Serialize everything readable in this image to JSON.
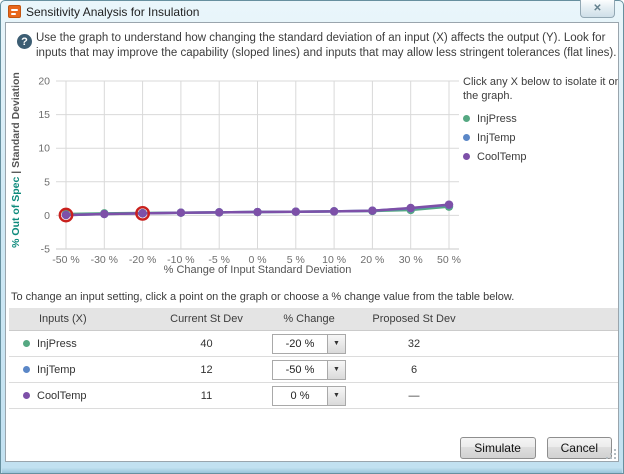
{
  "window": {
    "title": "Sensitivity Analysis for Insulation"
  },
  "icons": {
    "close": "✕",
    "help": "?",
    "dropdown_arrow": "▼"
  },
  "instruction": "Use the graph to understand how changing the standard deviation of an input (X) affects the output (Y).  Look for inputs that may improve the capability (sloped lines) and inputs that may allow less stringent tolerances (flat lines).",
  "legend": {
    "heading": "Click any X below to isolate it on the graph.",
    "items": [
      {
        "label": "InjPress",
        "color": "#55a882"
      },
      {
        "label": "InjTemp",
        "color": "#5b87c7"
      },
      {
        "label": "CoolTemp",
        "color": "#7d50a8"
      }
    ]
  },
  "chart_data": {
    "type": "line",
    "categories": [
      "-50 %",
      "-30 %",
      "-20 %",
      "-10 %",
      "-5 %",
      "0 %",
      "5 %",
      "10 %",
      "20 %",
      "30 %",
      "50 %"
    ],
    "series": [
      {
        "name": "InjPress",
        "color": "#55a882",
        "values": [
          0.2,
          0.3,
          0.35,
          0.4,
          0.45,
          0.5,
          0.55,
          0.6,
          0.65,
          0.8,
          1.3
        ]
      },
      {
        "name": "InjTemp",
        "color": "#5b87c7",
        "values": [
          0.05,
          0.2,
          0.3,
          0.4,
          0.45,
          0.5,
          0.55,
          0.6,
          0.7,
          1.05,
          1.55
        ]
      },
      {
        "name": "CoolTemp",
        "color": "#7d50a8",
        "values": [
          0.05,
          0.2,
          0.3,
          0.4,
          0.45,
          0.5,
          0.55,
          0.6,
          0.7,
          1.1,
          1.6
        ]
      }
    ],
    "highlighted_points": {
      "series": "CoolTemp",
      "category_indices": [
        0,
        2
      ],
      "ring_color": "#c9201d"
    },
    "yticks": [
      20,
      15,
      10,
      5,
      0,
      -5
    ],
    "ylim": [
      -5,
      20
    ],
    "grid": true,
    "xlabel": "% Change of Input Standard Deviation",
    "ylabel_left": "% Out of Spec",
    "ylabel_sep": "  |  ",
    "ylabel_right": "Standard Deviation",
    "legend_position": "right"
  },
  "table": {
    "note": "To change an input setting, click a point on the graph or choose a % change value from the table below.",
    "headers": [
      "Inputs (X)",
      "Current St Dev",
      "% Change",
      "Proposed St Dev"
    ],
    "rows": [
      {
        "input": "InjPress",
        "color": "#55a882",
        "current_st_dev": "40",
        "pct_change": "-20 %",
        "proposed_st_dev": "32"
      },
      {
        "input": "InjTemp",
        "color": "#5b87c7",
        "current_st_dev": "12",
        "pct_change": "-50 %",
        "proposed_st_dev": "6"
      },
      {
        "input": "CoolTemp",
        "color": "#7d50a8",
        "current_st_dev": "11",
        "pct_change": "0 %",
        "proposed_st_dev": "—"
      }
    ]
  },
  "buttons": {
    "simulate": "Simulate",
    "cancel": "Cancel"
  }
}
